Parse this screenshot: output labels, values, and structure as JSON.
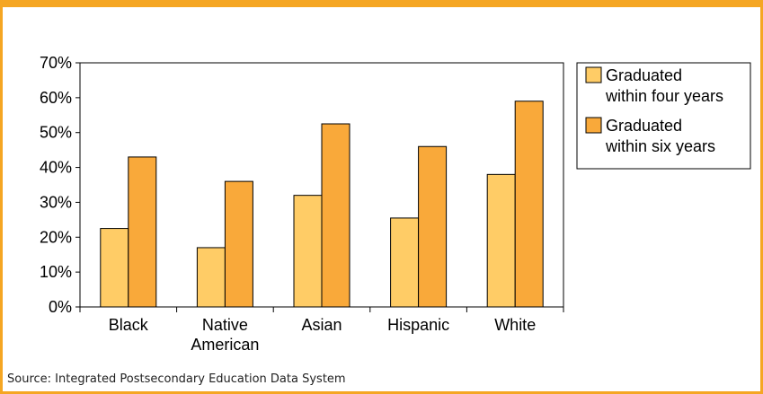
{
  "chart_data": {
    "type": "bar",
    "categories": [
      [
        "Black"
      ],
      [
        "Native",
        "American"
      ],
      [
        "Asian"
      ],
      [
        "Hispanic"
      ],
      [
        "White"
      ]
    ],
    "series": [
      {
        "name": "Graduated within four years",
        "legend_lines": [
          "Graduated",
          "within four years"
        ],
        "color": "#FFCC66",
        "values": [
          22.5,
          17,
          32,
          25.5,
          38
        ]
      },
      {
        "name": "Graduated within six years",
        "legend_lines": [
          "Graduated",
          "within six years"
        ],
        "color": "#F9A93A",
        "values": [
          43,
          36,
          52.5,
          46,
          59
        ]
      }
    ],
    "yticks": [
      "0%",
      "10%",
      "20%",
      "30%",
      "40%",
      "50%",
      "60%",
      "70%"
    ],
    "ylim": [
      0,
      70
    ],
    "grid": false,
    "legend": "right"
  },
  "source": "Source: Integrated Postsecondary Education Data System"
}
